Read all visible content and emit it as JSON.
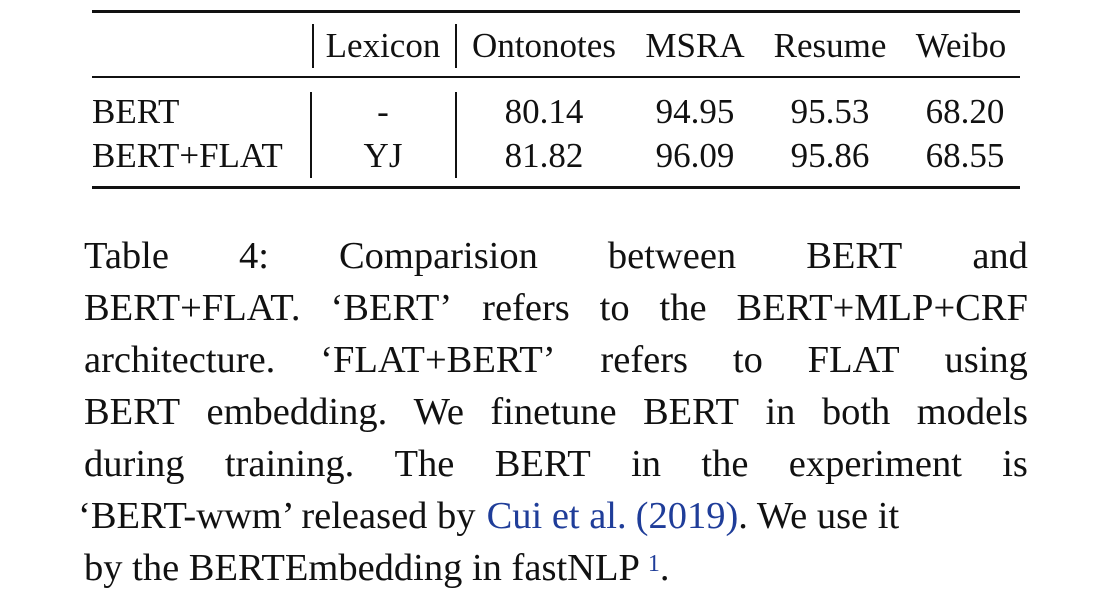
{
  "table": {
    "headers": {
      "lexicon": "Lexicon",
      "datasets": [
        "Ontonotes",
        "MSRA",
        "Resume",
        "Weibo"
      ]
    },
    "rows": [
      {
        "model": "BERT",
        "lexicon": "-",
        "values": [
          "80.14",
          "94.95",
          "95.53",
          "68.20"
        ]
      },
      {
        "model": "BERT+FLAT",
        "lexicon": "YJ",
        "values": [
          "81.82",
          "96.09",
          "95.86",
          "68.55"
        ]
      }
    ]
  },
  "caption": {
    "lines": [
      [
        "Table",
        "4:",
        "Comparision",
        "between",
        "BERT",
        "and"
      ],
      [
        "BERT+FLAT.",
        "‘BERT’",
        "refers",
        "to",
        "the",
        "BERT+MLP+CRF"
      ],
      [
        "architecture.",
        "‘FLAT+BERT’",
        "refers",
        "to",
        "FLAT",
        "using"
      ],
      [
        "BERT",
        "embedding.",
        "We",
        "finetune",
        "BERT",
        "in",
        "both",
        "models"
      ],
      [
        "during",
        "training.",
        "The",
        "BERT",
        "in",
        "the",
        "experiment",
        "is"
      ]
    ],
    "line6": {
      "before": "‘BERT-wwm’ released by",
      "cite_author": "Cui et al.",
      "cite_year": "(2019)",
      "after": ". We use it"
    },
    "line7": {
      "text": "by the BERTEmbedding in fastNLP",
      "footnote": "1",
      "end": "."
    }
  }
}
